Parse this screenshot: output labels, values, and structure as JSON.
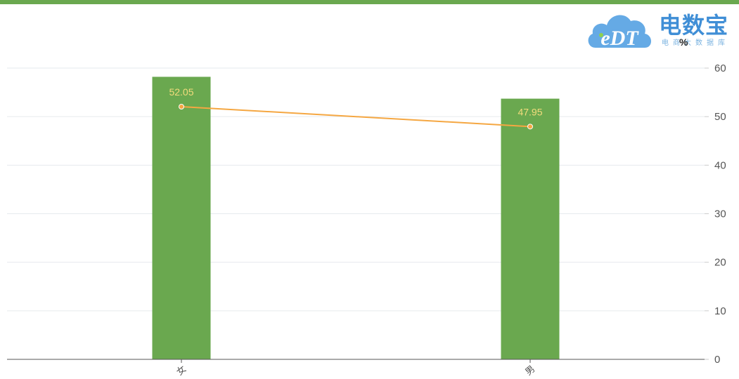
{
  "colors": {
    "top_bar": "#6aa84f",
    "bar": "#6aa84f",
    "line": "#f5a742",
    "grid": "#e6eaee",
    "axis": "#555555",
    "logo_blue": "#3f8ed6"
  },
  "logo": {
    "text": "eDT",
    "title": "电数宝",
    "subtitle": "电商大数据库"
  },
  "chart_data": {
    "type": "bar",
    "categories": [
      "女",
      "男"
    ],
    "series": [
      {
        "type": "bar",
        "values": [
          58.2,
          53.7
        ]
      },
      {
        "type": "line",
        "values": [
          52.05,
          47.95
        ],
        "labels": [
          "52.05",
          "47.95"
        ]
      }
    ],
    "y_unit": "%",
    "ylim": [
      0,
      60
    ],
    "yticks": [
      0,
      10,
      20,
      30,
      40,
      50,
      60
    ],
    "y_axis_side": "right",
    "grid": true
  }
}
